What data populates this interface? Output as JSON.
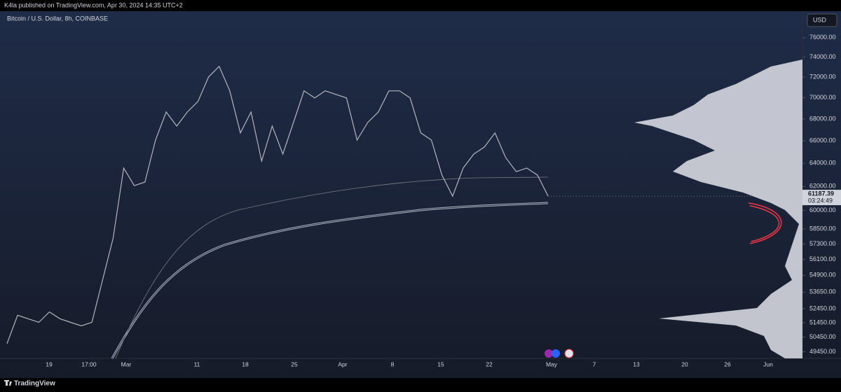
{
  "header": {
    "text": "K4la published on TradingView.com, Apr 30, 2024 14:35 UTC+2"
  },
  "chart": {
    "type": "line",
    "symbol": "Bitcoin / U.S. Dollar, 8h, COINBASE",
    "currency": "USD",
    "log_scale": true,
    "ylim": [
      49000,
      78200
    ],
    "yticks": [
      {
        "value": 76000,
        "label": "76000.00"
      },
      {
        "value": 74000,
        "label": "74000.00"
      },
      {
        "value": 72000,
        "label": "72000.00"
      },
      {
        "value": 70000,
        "label": "70000.00"
      },
      {
        "value": 68000,
        "label": "68000.00"
      },
      {
        "value": 66000,
        "label": "66000.00"
      },
      {
        "value": 64000,
        "label": "64000.00"
      },
      {
        "value": 62000,
        "label": "62000.00"
      },
      {
        "value": 60000,
        "label": "60000.00"
      },
      {
        "value": 58500,
        "label": "58500.00"
      },
      {
        "value": 57300,
        "label": "57300.00"
      },
      {
        "value": 56100,
        "label": "56100.00"
      },
      {
        "value": 54900,
        "label": "54900.00"
      },
      {
        "value": 53650,
        "label": "53650.00"
      },
      {
        "value": 52450,
        "label": "52450.00"
      },
      {
        "value": 51450,
        "label": "51450.00"
      },
      {
        "value": 50450,
        "label": "50450.00"
      },
      {
        "value": 49450,
        "label": "49450.00"
      }
    ],
    "xlabels": [
      "19",
      "17:00",
      "Mar",
      "11",
      "18",
      "25",
      "Apr",
      "8",
      "15",
      "22",
      "May",
      "7",
      "13",
      "20",
      "26",
      "Jun"
    ],
    "color": "#b2b5be",
    "closes": [
      50000,
      51980,
      51730,
      51480,
      52220,
      51730,
      51480,
      51230,
      51480,
      54520,
      57760,
      63580,
      62070,
      62370,
      66070,
      68650,
      67340,
      68650,
      69650,
      72020,
      73070,
      70660,
      66710,
      68650,
      64190,
      67340,
      64810,
      67670,
      70660,
      69980,
      70660,
      70320,
      69980,
      66070,
      67670,
      68650,
      70660,
      70660,
      69980,
      66710,
      66070,
      62970,
      61180,
      63580,
      64810,
      65440,
      66710,
      64500,
      63270,
      63580,
      62970,
      61187.39
    ],
    "last_price": 61187.39,
    "countdown": "03:24:49"
  },
  "footer": {
    "brand": "TradingView"
  }
}
